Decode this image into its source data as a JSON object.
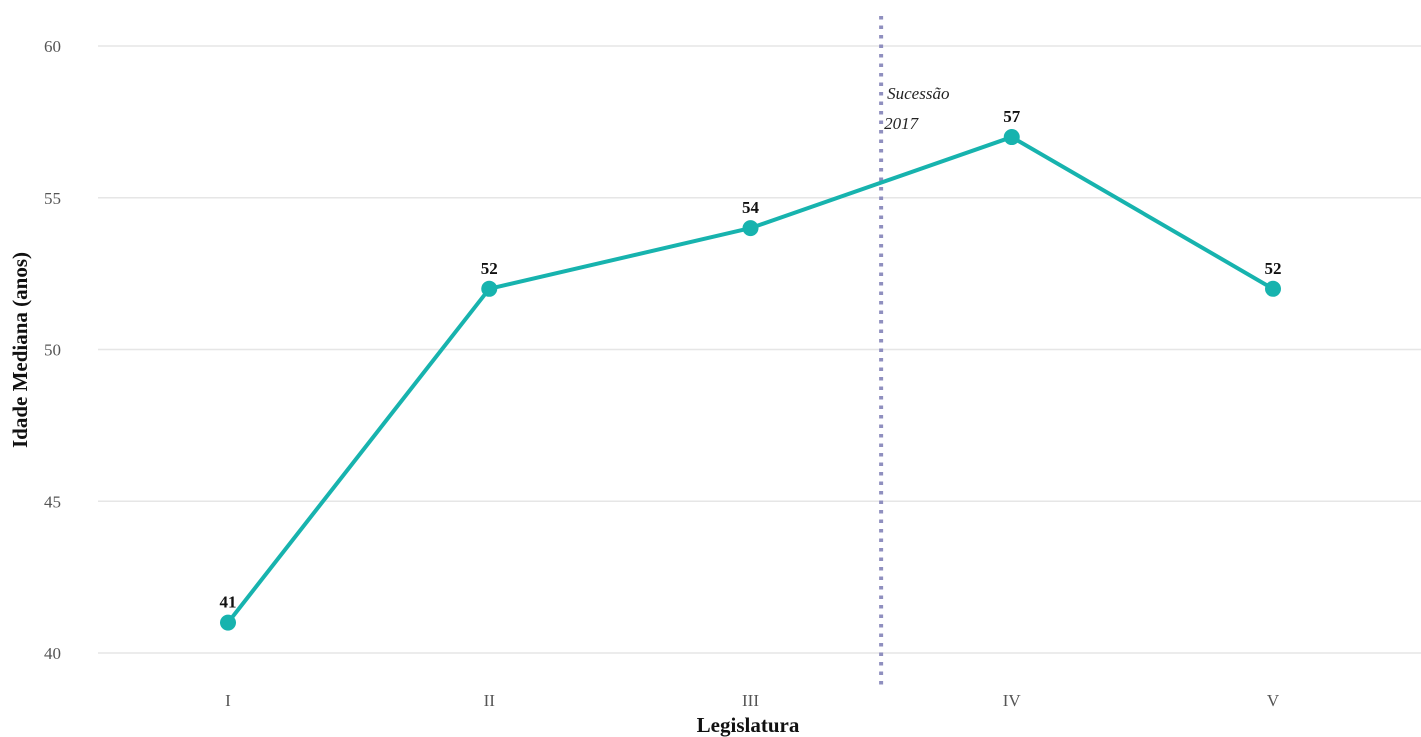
{
  "chart_data": {
    "type": "line",
    "title": "",
    "xlabel": "Legislatura",
    "ylabel": "Idade Mediana (anos)",
    "categories": [
      "I",
      "II",
      "III",
      "IV",
      "V"
    ],
    "series": [
      {
        "values": [
          41,
          52,
          54,
          57,
          52
        ]
      }
    ],
    "ylim": [
      40,
      60
    ],
    "yticks": [
      "40",
      "45",
      "50",
      "55",
      "60"
    ],
    "grid": "horizontal",
    "legend": "none",
    "annotation": {
      "between": [
        "III",
        "IV"
      ],
      "lines": [
        "Sucessão",
        "2017"
      ],
      "style": "dotted"
    },
    "colors": {
      "line": "#17b3ae",
      "annotation": "#8f8fbf"
    }
  }
}
